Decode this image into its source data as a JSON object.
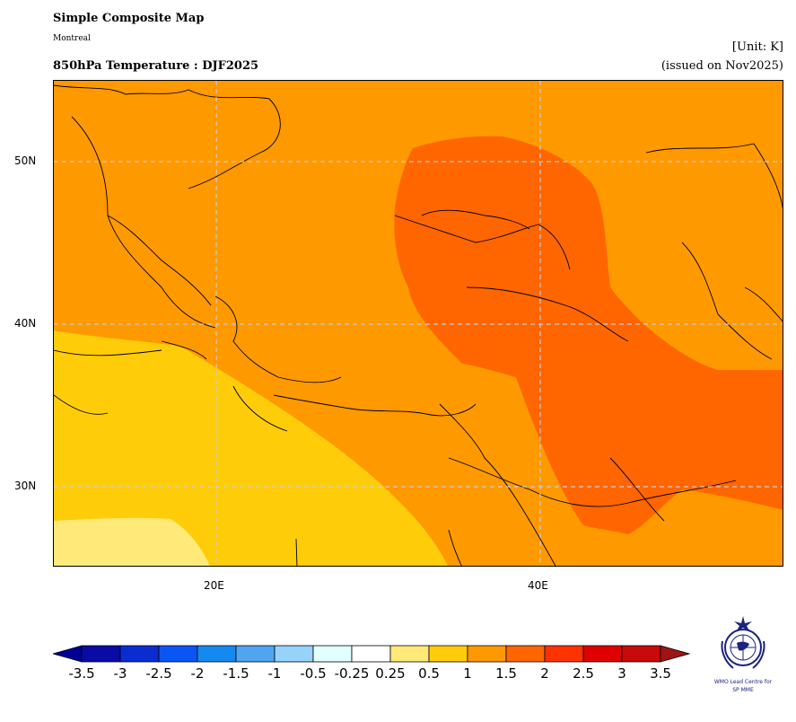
{
  "header": {
    "title": "Simple Composite Map",
    "subtitle": "Montreal",
    "map_title": "850hPa Temperature : DJF2025",
    "unit": "[Unit: K]",
    "issued": "(issued on Nov2025)"
  },
  "map": {
    "lat_labels": [
      "50N",
      "40N",
      "30N"
    ],
    "lon_labels": [
      "20E",
      "40E"
    ],
    "gridlines": true,
    "colors": {
      "anom_0_25_to_0_5": "#ffe978",
      "anom_0_5_to_1": "#ffcc0a",
      "anom_1_to_1_5": "#ff9900",
      "anom_1_5_to_2": "#ff6600",
      "coastline": "#000000"
    }
  },
  "colorbar": {
    "labels": [
      "-3.5",
      "-3",
      "-2.5",
      "-2",
      "-1.5",
      "-1",
      "-0.5",
      "-0.25",
      "0.25",
      "0.5",
      "1",
      "1.5",
      "2",
      "2.5",
      "3",
      "3.5"
    ],
    "colors": [
      "#0a0aa5",
      "#0a2dd2",
      "#0a55f5",
      "#1489f0",
      "#50a5f0",
      "#96d2fa",
      "#e1ffff",
      "#ffffff",
      "#ffe978",
      "#ffcc0a",
      "#ff9900",
      "#ff6600",
      "#ff3300",
      "#e10000",
      "#c80a0a"
    ],
    "extend_low": "#000096",
    "extend_high": "#a01414"
  },
  "logo": {
    "line1": "WMO Lead Centre for",
    "line2": "SP MME"
  }
}
